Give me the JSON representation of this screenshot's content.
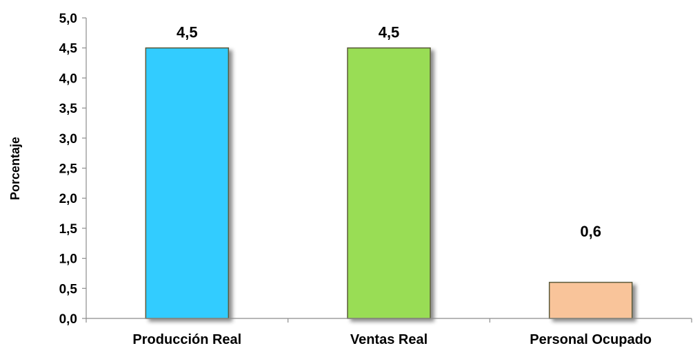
{
  "chart_data": {
    "type": "bar",
    "categories": [
      "Producción Real",
      "Ventas Real",
      "Personal Ocupado"
    ],
    "values": [
      4.5,
      4.5,
      0.6
    ],
    "data_labels": [
      "4,5",
      "4,5",
      "0,6"
    ],
    "colors": [
      "#33CCFF",
      "#99DD55",
      "#F9C49A"
    ],
    "title": "",
    "xlabel": "",
    "ylabel": "Porcentaje",
    "ylim": [
      0,
      5
    ],
    "yticks": [
      0,
      0.5,
      1,
      1.5,
      2,
      2.5,
      3,
      3.5,
      4,
      4.5,
      5
    ],
    "ytick_labels": [
      "0,0",
      "0,5",
      "1,0",
      "1,5",
      "2,0",
      "2,5",
      "3,0",
      "3,5",
      "4,0",
      "4,5",
      "5,0"
    ],
    "grid": false,
    "legend": "none"
  }
}
